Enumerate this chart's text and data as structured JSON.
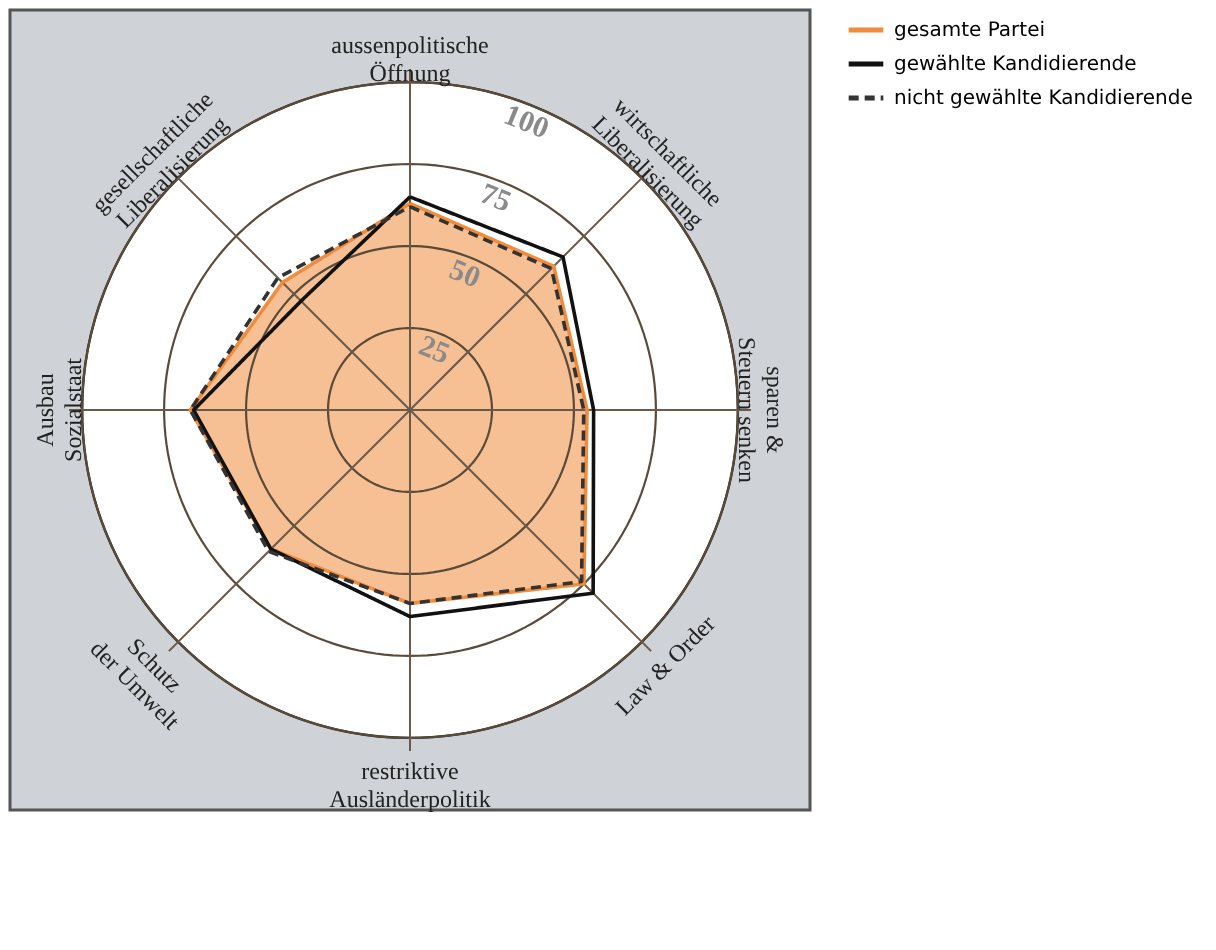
{
  "chart_data": {
    "type": "radar",
    "categories": [
      "aussenpolitische Öffnung",
      "wirtschaftliche Liberalisierung",
      "sparen & Steuern senken",
      "Law & Order",
      "restriktive Ausländerpolitik",
      "Schutz der Umwelt",
      "Ausbau Sozialstaat",
      "gesellschaftliche Liberalisierung"
    ],
    "series": [
      {
        "name": "gesamte Partei",
        "color": "#f08c3c",
        "line_style": "solid",
        "values": [
          63,
          62,
          54,
          75,
          59,
          60,
          67,
          55
        ]
      },
      {
        "name": "gewählte Kandidierende",
        "color": "#111111",
        "line_style": "solid",
        "values": [
          65,
          66,
          56,
          79,
          63,
          60,
          66,
          47
        ]
      },
      {
        "name": "nicht gewählte Kandidierende",
        "color": "#333333",
        "line_style": "dashed",
        "values": [
          62,
          61,
          53,
          74,
          59,
          61,
          67,
          57
        ]
      }
    ],
    "ylim": [
      0,
      100
    ],
    "yticks": [
      25,
      50,
      75,
      100
    ],
    "grid": true,
    "legend": "top right"
  }
}
